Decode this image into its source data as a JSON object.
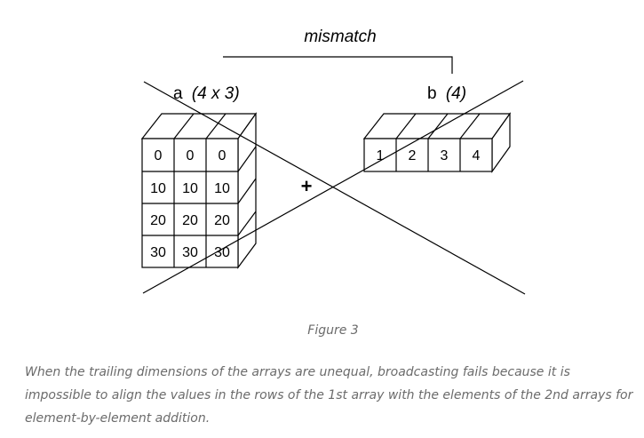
{
  "diagram": {
    "mismatch_label": "mismatch",
    "array_a": {
      "name": "a",
      "shape": "(4 x 3)",
      "rows": [
        [
          "0",
          "0",
          "0"
        ],
        [
          "10",
          "10",
          "10"
        ],
        [
          "20",
          "20",
          "20"
        ],
        [
          "30",
          "30",
          "30"
        ]
      ]
    },
    "array_b": {
      "name": "b",
      "shape": "(4)",
      "values": [
        "1",
        "2",
        "3",
        "4"
      ]
    },
    "operator": "+"
  },
  "caption": "Figure 3",
  "description": "When the trailing dimensions of the arrays are unequal, broadcasting fails because it is impossible to align the values in the rows of the 1st array with the elements of the 2nd arrays for element-by-element addition."
}
